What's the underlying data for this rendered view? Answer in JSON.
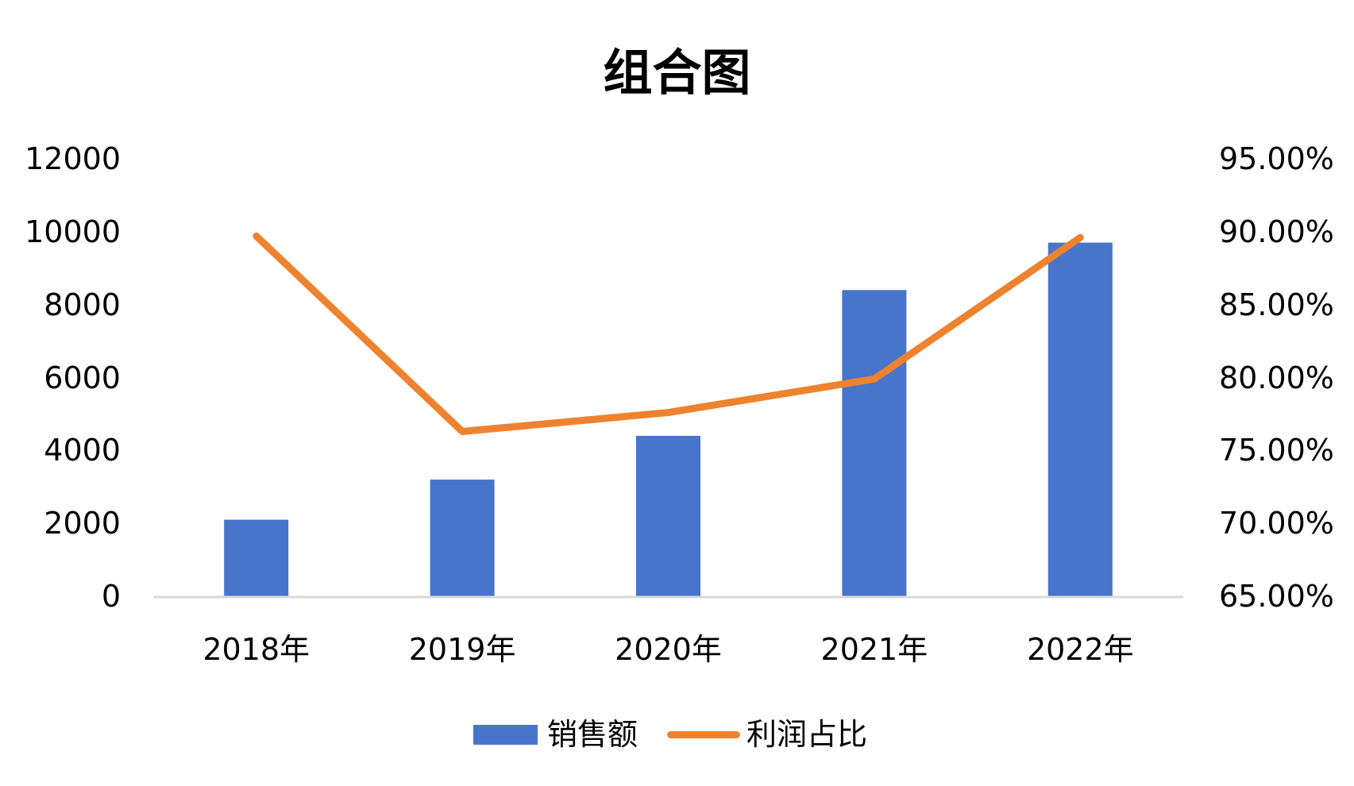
{
  "chart_data": {
    "type": "bar+line",
    "title": "组合图",
    "categories": [
      "2018年",
      "2019年",
      "2020年",
      "2021年",
      "2022年"
    ],
    "series": [
      {
        "name": "销售额",
        "type": "bar",
        "axis": "left",
        "color": "#4874CB",
        "values": [
          2100,
          3200,
          4400,
          8400,
          9700
        ]
      },
      {
        "name": "利润占比",
        "type": "line",
        "axis": "right",
        "color": "#EE822F",
        "values": [
          0.897,
          0.763,
          0.776,
          0.799,
          0.896
        ]
      }
    ],
    "y_left": {
      "min": 0,
      "max": 12000,
      "step": 2000,
      "ticks": [
        "0",
        "2000",
        "4000",
        "6000",
        "8000",
        "10000",
        "12000"
      ]
    },
    "y_right": {
      "min": 0.65,
      "max": 0.95,
      "step": 0.05,
      "ticks": [
        "65.00%",
        "70.00%",
        "75.00%",
        "80.00%",
        "85.00%",
        "90.00%",
        "95.00%"
      ]
    },
    "xlabel": "",
    "ylabel": "",
    "grid": false,
    "legend_position": "bottom"
  },
  "legend": {
    "bar_label": "销售额",
    "line_label": "利润占比"
  }
}
